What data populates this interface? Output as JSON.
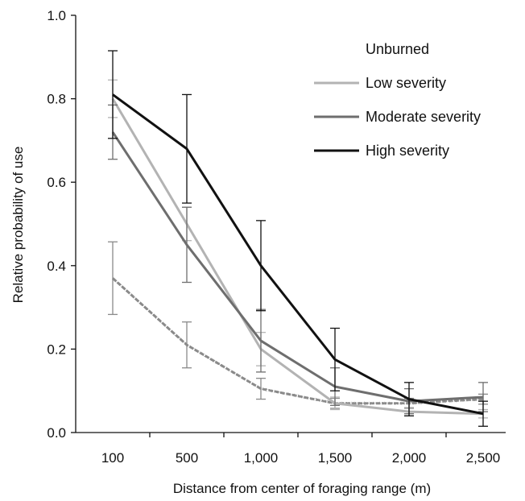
{
  "chart_data": {
    "type": "line",
    "title": "",
    "xlabel": "Distance from center of foraging range (m)",
    "ylabel": "Relative probability of use",
    "categories": [
      "100",
      "500",
      "1,000",
      "1,500",
      "2,000",
      "2,500"
    ],
    "ylim": [
      0,
      1.0
    ],
    "yticks": [
      "0.0",
      "0.2",
      "0.4",
      "0.6",
      "0.8",
      "1.0"
    ],
    "grid": false,
    "legend_position": "top-right",
    "series": [
      {
        "name": "Unburned",
        "color": "#8a8a8a",
        "style": "textured",
        "values": [
          0.37,
          0.21,
          0.105,
          0.07,
          0.07,
          0.08
        ],
        "error": [
          0.087,
          0.055,
          0.025,
          0.012,
          0.012,
          0.012
        ]
      },
      {
        "name": "Low severity",
        "color": "#b3b3b3",
        "style": "solid",
        "values": [
          0.8,
          0.5,
          0.2,
          0.07,
          0.05,
          0.045
        ],
        "error": [
          0.045,
          0.04,
          0.04,
          0.015,
          0.01,
          0.01
        ]
      },
      {
        "name": "Moderate severity",
        "color": "#6e6e6e",
        "style": "solid",
        "values": [
          0.72,
          0.45,
          0.22,
          0.11,
          0.075,
          0.085
        ],
        "error": [
          0.065,
          0.09,
          0.075,
          0.045,
          0.03,
          0.035
        ]
      },
      {
        "name": "High severity",
        "color": "#111111",
        "style": "solid",
        "values": [
          0.81,
          0.68,
          0.4,
          0.175,
          0.08,
          0.045
        ],
        "error": [
          0.105,
          0.13,
          0.108,
          0.075,
          0.04,
          0.03
        ]
      }
    ]
  }
}
